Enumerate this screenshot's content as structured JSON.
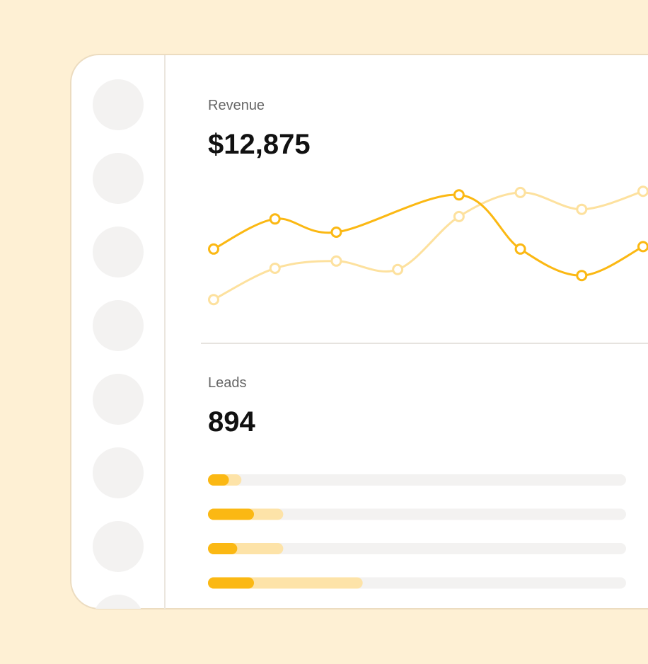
{
  "revenue": {
    "label": "Revenue",
    "value": "$12,875",
    "chart": {
      "type": "line",
      "xlim": [
        0,
        7
      ],
      "ylim": [
        0,
        100
      ],
      "series": [
        {
          "color": "#fde19e",
          "x": [
            0,
            1,
            2,
            3,
            4,
            5,
            6,
            7
          ],
          "values": [
            4,
            30,
            36,
            29,
            73,
            93,
            79,
            94
          ]
        },
        {
          "color": "#fbb813",
          "x": [
            0,
            1,
            2,
            4,
            5,
            6,
            7
          ],
          "values": [
            46,
            71,
            60,
            91,
            46,
            24,
            48
          ]
        }
      ]
    }
  },
  "leads": {
    "label": "Leads",
    "value": "894",
    "chart": {
      "type": "bar",
      "xlim": [
        0,
        100
      ],
      "track_color": "#f3f2f1",
      "series": [
        {
          "color": "#fde3a8",
          "values": [
            8,
            18,
            18,
            37
          ]
        },
        {
          "color": "#fbb813",
          "values": [
            5,
            11,
            7,
            11
          ]
        }
      ]
    }
  }
}
